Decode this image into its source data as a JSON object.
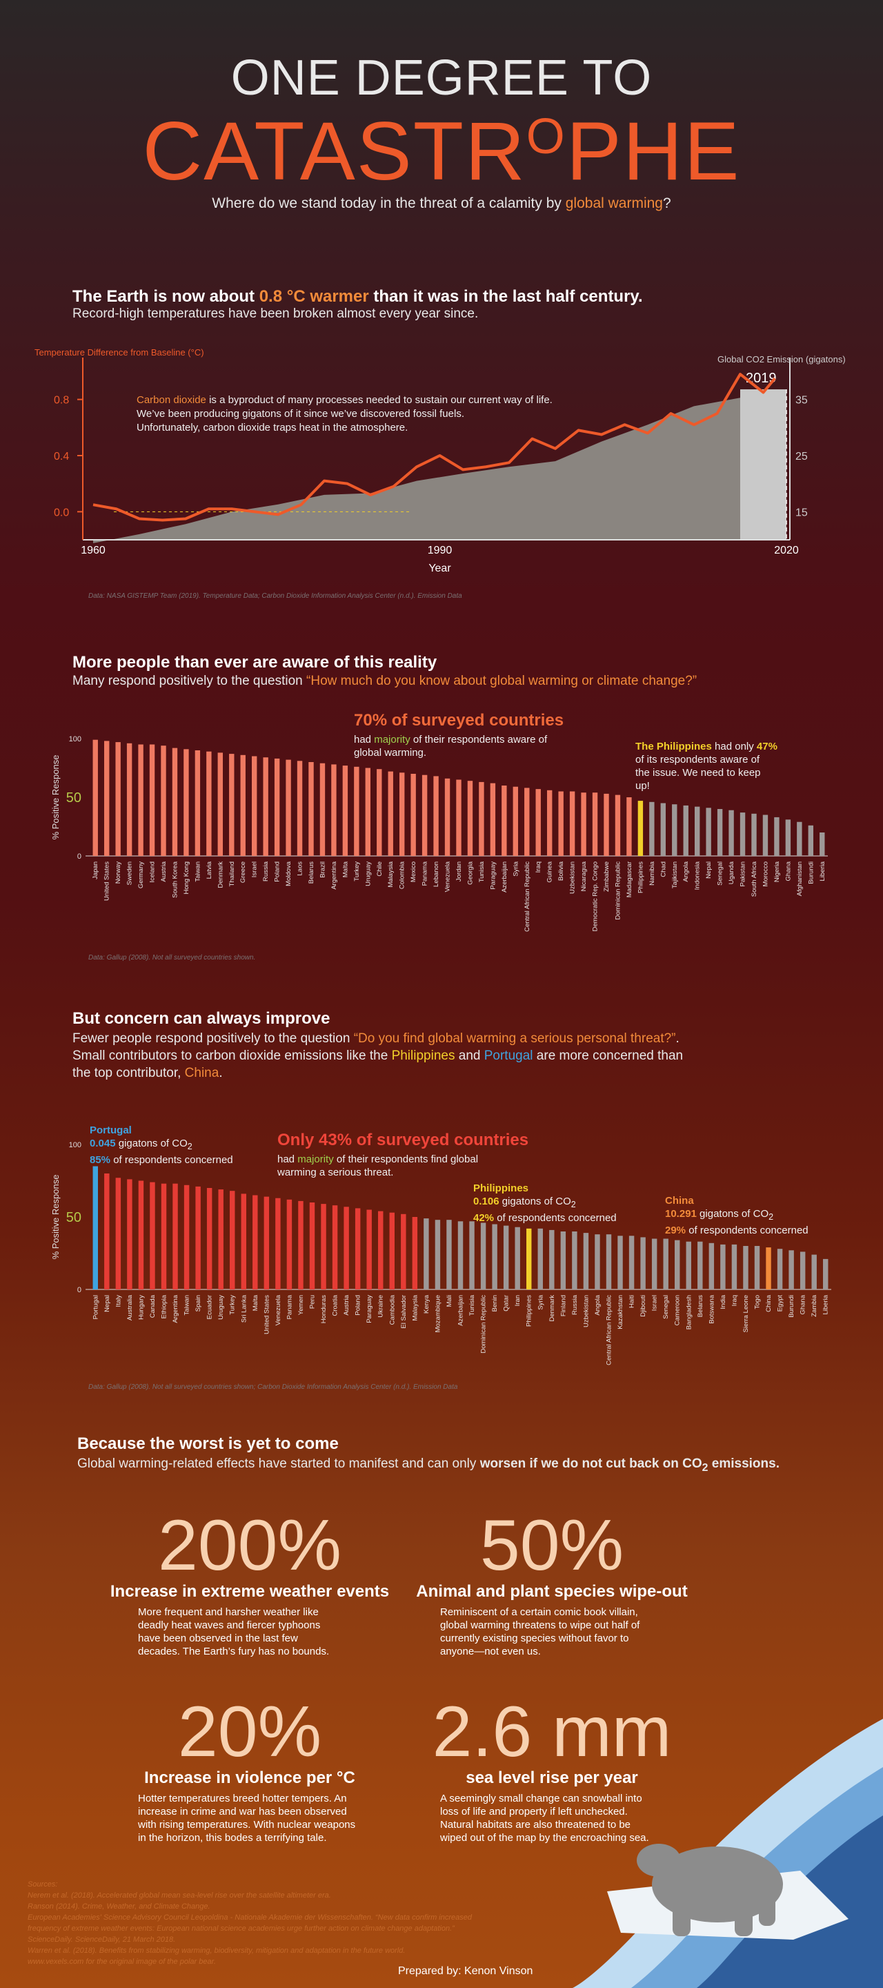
{
  "header": {
    "title": "ONE DEGREE TO",
    "big_a": "CATASTR",
    "big_o": "O",
    "big_b": "PHE",
    "subtitle_pre": "Where do we stand today in the threat of a calamity by ",
    "subtitle_em": "global warming",
    "subtitle_post": "?"
  },
  "section1": {
    "h_pre": "The Earth is now about ",
    "h_em": "0.8 °C warmer",
    "h_post": " than it was in the last half century.",
    "sub": "Record-high temperatures have been broken almost every year since.",
    "note_em": "Carbon dioxide",
    "note_1": " is a byproduct of many processes needed to sustain our current way of life.",
    "note_2": "We’ve been producing gigatons of it since we’ve discovered fossil fuels.",
    "note_3": "Unfortunately, carbon dioxide traps heat in the atmosphere.",
    "source": "Data: NASA GISTEMP Team (2019). Temperature Data; Carbon Dioxide Information Analysis Center (n.d.). Emission Data"
  },
  "section2": {
    "h": "More people than ever are aware of this reality",
    "sub_pre": "Many respond positively to the question ",
    "sub_q": "“How much do you know about global warming or climate change?”",
    "callout_h": "70% of surveyed countries",
    "callout_1": "had ",
    "callout_em": "majority",
    "callout_2": " of their respondents aware of",
    "callout_3": "global warming.",
    "ph_name": "The Philippines",
    "ph_1": " had only ",
    "ph_pct": "47%",
    "ph_2": "of its respondents aware of",
    "ph_3": "the issue. We need to keep",
    "ph_4": "up!",
    "source": "Data: Gallup (2008). Not all surveyed countries shown."
  },
  "section3": {
    "h": "But concern can always improve",
    "l1_pre": "Fewer people respond positively to the question ",
    "l1_q": "“Do you find global warming a serious personal threat?”",
    "l1_post": ".",
    "l2_pre": "Small contributors to carbon dioxide emissions like the ",
    "l2_ph": "Philippines",
    "l2_and": " and ",
    "l2_pt": "Portugal",
    "l2_post": " are more concerned than",
    "l3_pre": "the top contributor, ",
    "l3_cn": "China",
    "l3_post": ".",
    "callout_h": "Only 43% of surveyed countries",
    "callout_1": "had ",
    "callout_em": "majority",
    "callout_2": " of their respondents find global",
    "callout_3": "warming a serious threat.",
    "pt_name": "Portugal",
    "pt_val": "0.045",
    "pt_pct": "85%",
    "ph_name": "Philippines",
    "ph_val": "0.106",
    "ph_pct": "42%",
    "cn_name": "China",
    "cn_val": "10.291",
    "cn_pct": "29%",
    "gig": " gigatons of CO",
    "two": "2",
    "concerned": " of respondents concerned",
    "source": "Data: Gallup (2008). Not all surveyed countries shown; Carbon Dioxide Information Analysis Center (n.d.). Emission Data"
  },
  "section4": {
    "h": "Because the worst is yet to come",
    "sub_pre": "Global warming-related effects have started to manifest and can only ",
    "sub_bold": "worsen if we do not cut back on CO",
    "sub_two": "2",
    "sub_end": " emissions.",
    "stats": [
      {
        "num": "200%",
        "head": "Increase in extreme weather events",
        "lines": [
          "More frequent and harsher weather like",
          "deadly heat waves and fiercer typhoons",
          "have been observed in the last few",
          "decades. The Earth’s fury has no bounds."
        ]
      },
      {
        "num": "50%",
        "head": "Animal and plant species wipe-out",
        "lines": [
          "Reminiscent of a certain comic book villain,",
          "global warming threatens to wipe out half of",
          "currently existing species without favor to",
          "anyone—not even us."
        ]
      },
      {
        "num": "20%",
        "head": "Increase in violence per °C",
        "lines": [
          "Hotter temperatures breed hotter tempers. An",
          "increase in crime and war has been observed",
          "with rising temperatures. With nuclear weapons",
          "in the horizon, this bodes a terrifying tale."
        ]
      },
      {
        "num": "2.6 mm",
        "head": "sea level rise per year",
        "lines": [
          "A seemingly small change can snowball into",
          "loss of life and property if left unchecked.",
          "Natural habitats are also threatened to be",
          "wiped out of the map by the encroaching sea."
        ]
      }
    ]
  },
  "footer": {
    "refs_title": "Sources:",
    "refs": [
      "Nerem et al. (2018). Accelerated global mean sea-level rise over the satellite altimeter era.",
      "Ranson (2014). Crime, Weather, and Climate Change.",
      "European Academies' Science Advisory Council Leopoldina - Nationale Akademie der Wissenschaften. “New data confirm increased",
      "frequency of extreme weather events: European national science academies urge further action on climate change adaptation.”",
      "ScienceDaily. ScienceDaily, 21 March 2018.",
      "Warren et al. (2018). Benefits from stabilizing warming, biodiversity, mitigation and adaptation in the future world.",
      "www.vexels.com for the original image of the polar bear."
    ],
    "credit": "Prepared by: Kenon Vinson"
  },
  "colors": {
    "orange": "#ee5a2a",
    "accent": "#f28b3a",
    "yellow": "#f2cf2a",
    "blue": "#3fa3df",
    "grey_bar": "#9e9897",
    "red_bar": "#e63c35",
    "coral_bar": "#ef7a62"
  },
  "chart_data": [
    {
      "type": "line",
      "title": "",
      "xlabel": "Year",
      "ylabel": "Temperature Difference from Baseline (°C)",
      "ylabel2": "Global CO2 Emission (gigatons)",
      "xlim": [
        1960,
        2020
      ],
      "ylim": [
        -0.2,
        1.0
      ],
      "ylim2": [
        10,
        40
      ],
      "xticks": [
        1960,
        1990,
        2020
      ],
      "yticks": [
        0.0,
        0.4,
        0.8
      ],
      "yticks2": [
        15,
        25,
        35
      ],
      "highlight_label": "2019",
      "series": [
        {
          "name": "Temperature",
          "axis": "left",
          "x": [
            1960,
            1962,
            1964,
            1966,
            1968,
            1970,
            1972,
            1974,
            1976,
            1978,
            1980,
            1982,
            1984,
            1986,
            1988,
            1990,
            1992,
            1994,
            1996,
            1998,
            2000,
            2002,
            2004,
            2006,
            2008,
            2010,
            2012,
            2014,
            2016,
            2018,
            2019
          ],
          "values": [
            0.05,
            0.02,
            -0.05,
            -0.06,
            -0.05,
            0.02,
            0.02,
            0.0,
            -0.02,
            0.05,
            0.22,
            0.2,
            0.12,
            0.18,
            0.32,
            0.4,
            0.3,
            0.32,
            0.35,
            0.52,
            0.45,
            0.58,
            0.55,
            0.62,
            0.56,
            0.7,
            0.62,
            0.7,
            0.98,
            0.85,
            0.95
          ]
        },
        {
          "name": "CO2",
          "axis": "right",
          "x": [
            1960,
            1964,
            1968,
            1972,
            1976,
            1980,
            1984,
            1988,
            1992,
            1996,
            2000,
            2004,
            2008,
            2012,
            2016,
            2019
          ],
          "values": [
            9.4,
            11,
            12.8,
            15,
            16.3,
            18,
            18.3,
            20.5,
            21.8,
            23,
            24,
            27.5,
            30.5,
            33.8,
            35.3,
            36.4
          ]
        }
      ]
    },
    {
      "type": "bar",
      "title": "70% of surveyed countries",
      "ylabel": "% Positive Response",
      "ylim": [
        0,
        100
      ],
      "yticks": [
        0,
        50,
        100
      ],
      "highlight": "Philippines",
      "categories": [
        "Japan",
        "United States",
        "Norway",
        "Sweden",
        "Germany",
        "Iceland",
        "Austria",
        "South Korea",
        "Hong Kong",
        "Taiwan",
        "Latvia",
        "Denmark",
        "Thailand",
        "Greece",
        "Israel",
        "Russia",
        "Poland",
        "Moldova",
        "Laos",
        "Belarus",
        "Brazil",
        "Argentina",
        "Malta",
        "Turkey",
        "Uruguay",
        "Chile",
        "Malaysia",
        "Colombia",
        "Mexico",
        "Panama",
        "Lebanon",
        "Venezuela",
        "Jordan",
        "Georgia",
        "Tunisia",
        "Paraguay",
        "Azerbaijan",
        "Syria",
        "Central African Republic",
        "Iraq",
        "Guinea",
        "Bolivia",
        "Uzbekistan",
        "Nicaragua",
        "Democratic Rep. Congo",
        "Zimbabwe",
        "Dominican Republic",
        "Madagascar",
        "Philippines",
        "Namibia",
        "Chad",
        "Tajikistan",
        "Angola",
        "Indonesia",
        "Nepal",
        "Senegal",
        "Uganda",
        "Pakistan",
        "South Africa",
        "Morocco",
        "Nigeria",
        "Ghana",
        "Afghanistan",
        "Burundi",
        "Liberia"
      ],
      "values": [
        99,
        98,
        97,
        96,
        95,
        95,
        94,
        92,
        91,
        90,
        89,
        88,
        87,
        86,
        85,
        84,
        83,
        82,
        81,
        80,
        79,
        78,
        77,
        76,
        75,
        74,
        72,
        71,
        70,
        69,
        68,
        66,
        65,
        64,
        63,
        62,
        60,
        59,
        58,
        57,
        56,
        55,
        55,
        54,
        54,
        53,
        52,
        50,
        47,
        46,
        45,
        44,
        43,
        42,
        41,
        40,
        39,
        37,
        36,
        35,
        33,
        31,
        29,
        26,
        20
      ]
    },
    {
      "type": "bar",
      "title": "Only 43% of surveyed countries",
      "ylabel": "% Positive Response",
      "ylim": [
        0,
        100
      ],
      "yticks": [
        0,
        50,
        100
      ],
      "highlight": [
        "Portugal",
        "Philippines",
        "China"
      ],
      "categories": [
        "Portugal",
        "Nepal",
        "Italy",
        "Australia",
        "Hungary",
        "Canada",
        "Ethiopia",
        "Argentina",
        "Taiwan",
        "Spain",
        "Ecuador",
        "Uruguay",
        "Turkey",
        "Sri Lanka",
        "Malta",
        "United States",
        "Venezuela",
        "Panama",
        "Yemen",
        "Peru",
        "Honduras",
        "Croatia",
        "Austria",
        "Poland",
        "Paraguay",
        "Ukraine",
        "Cambodia",
        "El Salvador",
        "Malaysia",
        "Kenya",
        "Mozambique",
        "Mali",
        "Azerbaijan",
        "Tunisia",
        "Dominican Republic",
        "Benin",
        "Qatar",
        "Iran",
        "Philippines",
        "Syria",
        "Denmark",
        "Finland",
        "Russia",
        "Uzbekistan",
        "Angola",
        "Central African Republic",
        "Kazakhstan",
        "Haiti",
        "Djibouti",
        "Israel",
        "Senegal",
        "Cameroon",
        "Bangladesh",
        "Belarus",
        "Botswana",
        "India",
        "Iraq",
        "Sierra Leone",
        "Togo",
        "China",
        "Egypt",
        "Burundi",
        "Ghana",
        "Zambia",
        "Liberia"
      ],
      "values": [
        85,
        80,
        77,
        76,
        75,
        74,
        73,
        73,
        72,
        71,
        70,
        69,
        68,
        66,
        65,
        64,
        63,
        62,
        61,
        60,
        59,
        58,
        57,
        56,
        55,
        54,
        53,
        52,
        50,
        49,
        48,
        48,
        47,
        47,
        46,
        45,
        44,
        43,
        42,
        42,
        41,
        40,
        40,
        39,
        38,
        38,
        37,
        37,
        36,
        35,
        35,
        34,
        33,
        33,
        32,
        31,
        31,
        30,
        30,
        29,
        28,
        27,
        26,
        24,
        21
      ]
    }
  ]
}
